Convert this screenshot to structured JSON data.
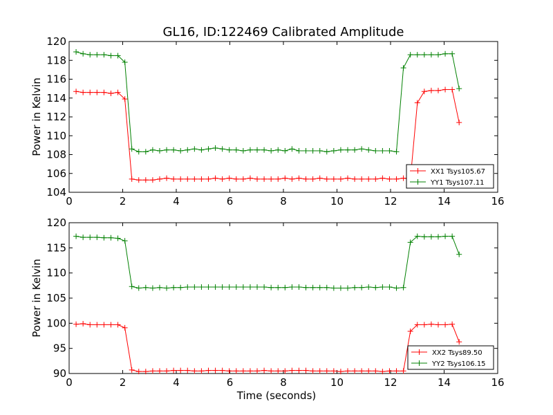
{
  "title": "GL16, ID:122469 Calibrated Amplitude",
  "chart_data": [
    {
      "type": "line",
      "title": "GL16, ID:122469 Calibrated Amplitude",
      "xlabel": "",
      "ylabel": "Power in Kelvin",
      "xlim": [
        0,
        16
      ],
      "ylim": [
        104,
        120
      ],
      "xticks": [
        "0",
        "2",
        "4",
        "6",
        "8",
        "10",
        "12",
        "14",
        "16"
      ],
      "yticks": [
        "104",
        "106",
        "108",
        "110",
        "112",
        "114",
        "116",
        "118",
        "120"
      ],
      "grid": false,
      "legend_position": "lower-right",
      "x": [
        0.26,
        0.52,
        0.78,
        1.04,
        1.3,
        1.56,
        1.82,
        2.08,
        2.34,
        2.6,
        2.86,
        3.12,
        3.38,
        3.64,
        3.9,
        4.16,
        4.42,
        4.68,
        4.94,
        5.2,
        5.46,
        5.72,
        5.98,
        6.24,
        6.5,
        6.76,
        7.02,
        7.28,
        7.54,
        7.8,
        8.06,
        8.32,
        8.58,
        8.84,
        9.1,
        9.36,
        9.62,
        9.88,
        10.14,
        10.4,
        10.66,
        10.92,
        11.18,
        11.44,
        11.7,
        11.96,
        12.22,
        12.48,
        12.74,
        13.0,
        13.26,
        13.52,
        13.78,
        14.04,
        14.3,
        14.56
      ],
      "series": [
        {
          "name": "XX1 Tsys105.67",
          "color": "#ff0000",
          "values": [
            114.7,
            114.6,
            114.6,
            114.6,
            114.6,
            114.5,
            114.6,
            113.9,
            105.4,
            105.3,
            105.3,
            105.3,
            105.4,
            105.5,
            105.4,
            105.4,
            105.4,
            105.4,
            105.4,
            105.4,
            105.5,
            105.4,
            105.5,
            105.4,
            105.4,
            105.5,
            105.4,
            105.4,
            105.4,
            105.4,
            105.5,
            105.4,
            105.5,
            105.4,
            105.4,
            105.5,
            105.4,
            105.4,
            105.4,
            105.5,
            105.4,
            105.4,
            105.4,
            105.4,
            105.5,
            105.4,
            105.4,
            105.5,
            105.4,
            113.5,
            114.7,
            114.8,
            114.8,
            114.9,
            114.9,
            111.4
          ]
        },
        {
          "name": "YY1 Tsys107.11",
          "color": "#008000",
          "values": [
            118.9,
            118.7,
            118.6,
            118.6,
            118.6,
            118.5,
            118.5,
            117.8,
            108.6,
            108.3,
            108.3,
            108.5,
            108.4,
            108.5,
            108.5,
            108.4,
            108.5,
            108.6,
            108.5,
            108.6,
            108.7,
            108.6,
            108.5,
            108.5,
            108.4,
            108.5,
            108.5,
            108.5,
            108.4,
            108.5,
            108.4,
            108.6,
            108.4,
            108.4,
            108.4,
            108.4,
            108.3,
            108.4,
            108.5,
            108.5,
            108.5,
            108.6,
            108.5,
            108.4,
            108.4,
            108.4,
            108.3,
            117.2,
            118.6,
            118.6,
            118.6,
            118.6,
            118.6,
            118.7,
            118.7,
            115.0
          ]
        }
      ]
    },
    {
      "type": "line",
      "title": "",
      "xlabel": "Time (seconds)",
      "ylabel": "Power in Kelvin",
      "xlim": [
        0,
        16
      ],
      "ylim": [
        90,
        120
      ],
      "xticks": [
        "0",
        "2",
        "4",
        "6",
        "8",
        "10",
        "12",
        "14",
        "16"
      ],
      "yticks": [
        "90",
        "95",
        "100",
        "105",
        "110",
        "115",
        "120"
      ],
      "grid": false,
      "legend_position": "lower-right",
      "x": [
        0.26,
        0.52,
        0.78,
        1.04,
        1.3,
        1.56,
        1.82,
        2.08,
        2.34,
        2.6,
        2.86,
        3.12,
        3.38,
        3.64,
        3.9,
        4.16,
        4.42,
        4.68,
        4.94,
        5.2,
        5.46,
        5.72,
        5.98,
        6.24,
        6.5,
        6.76,
        7.02,
        7.28,
        7.54,
        7.8,
        8.06,
        8.32,
        8.58,
        8.84,
        9.1,
        9.36,
        9.62,
        9.88,
        10.14,
        10.4,
        10.66,
        10.92,
        11.18,
        11.44,
        11.7,
        11.96,
        12.22,
        12.48,
        12.74,
        13.0,
        13.26,
        13.52,
        13.78,
        14.04,
        14.3,
        14.56
      ],
      "series": [
        {
          "name": "XX2 Tsys89.50",
          "color": "#ff0000",
          "values": [
            99.8,
            99.9,
            99.7,
            99.7,
            99.7,
            99.7,
            99.7,
            99.1,
            90.7,
            90.4,
            90.4,
            90.5,
            90.5,
            90.5,
            90.6,
            90.6,
            90.6,
            90.5,
            90.5,
            90.6,
            90.6,
            90.6,
            90.5,
            90.5,
            90.5,
            90.5,
            90.5,
            90.6,
            90.5,
            90.5,
            90.5,
            90.6,
            90.6,
            90.6,
            90.5,
            90.5,
            90.5,
            90.5,
            90.4,
            90.5,
            90.5,
            90.5,
            90.5,
            90.5,
            90.4,
            90.5,
            90.5,
            90.5,
            98.4,
            99.7,
            99.7,
            99.8,
            99.7,
            99.7,
            99.8,
            96.3
          ]
        },
        {
          "name": "YY2 Tsys106.15",
          "color": "#008000",
          "values": [
            117.3,
            117.1,
            117.1,
            117.1,
            117.0,
            117.0,
            116.9,
            116.4,
            107.3,
            107.0,
            107.1,
            107.0,
            107.1,
            107.0,
            107.1,
            107.1,
            107.2,
            107.2,
            107.2,
            107.2,
            107.2,
            107.2,
            107.2,
            107.2,
            107.2,
            107.2,
            107.2,
            107.2,
            107.1,
            107.1,
            107.1,
            107.2,
            107.2,
            107.1,
            107.1,
            107.1,
            107.1,
            107.0,
            107.0,
            107.0,
            107.1,
            107.1,
            107.2,
            107.1,
            107.2,
            107.2,
            107.0,
            107.1,
            116.1,
            117.3,
            117.2,
            117.2,
            117.2,
            117.3,
            117.3,
            113.7
          ]
        }
      ]
    }
  ]
}
